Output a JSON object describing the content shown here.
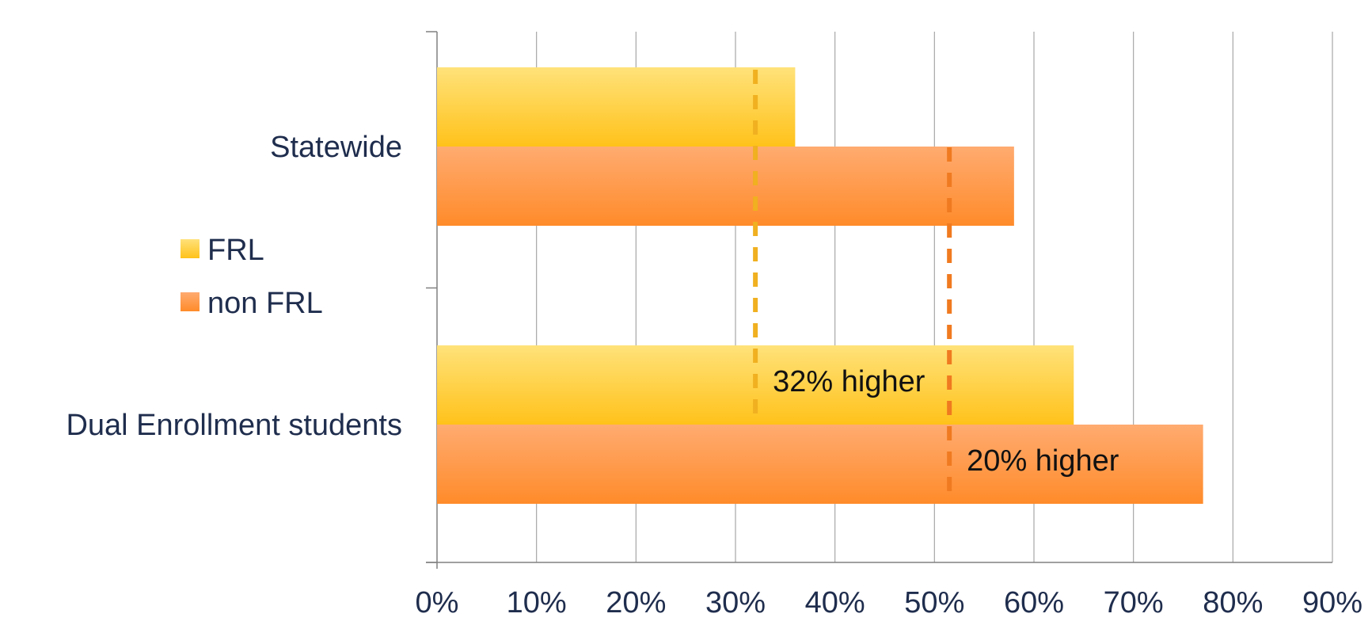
{
  "chart_data": {
    "type": "bar",
    "orientation": "horizontal",
    "categories": [
      "Statewide",
      "Dual Enrollment students"
    ],
    "series": [
      {
        "name": "FRL",
        "values": [
          36,
          64
        ]
      },
      {
        "name": "non FRL",
        "values": [
          58,
          77
        ]
      }
    ],
    "xlim": [
      0,
      90
    ],
    "x_ticks": [
      "0%",
      "10%",
      "20%",
      "30%",
      "40%",
      "50%",
      "60%",
      "70%",
      "80%",
      "90%"
    ],
    "title": "",
    "xlabel": "",
    "ylabel": "",
    "grid": "vertical",
    "legend": "left",
    "reference_lines": [
      {
        "series": "FRL",
        "value": 32
      },
      {
        "series": "non FRL",
        "value": 51.5
      }
    ],
    "annotations": [
      {
        "text": "32% higher",
        "category": "Dual Enrollment students",
        "series": "FRL"
      },
      {
        "text": "20% higher",
        "category": "Dual Enrollment students",
        "series": "non FRL"
      }
    ]
  },
  "colors": {
    "frl": "#ffc21a",
    "frl_light": "#ffe27a",
    "non_frl": "#ff8b2a",
    "non_frl_light": "#ffab70",
    "frl_dash": "#f0b020",
    "non_frl_dash": "#f07a20",
    "grid": "#a6a6a6",
    "text": "#1f2d4d"
  }
}
